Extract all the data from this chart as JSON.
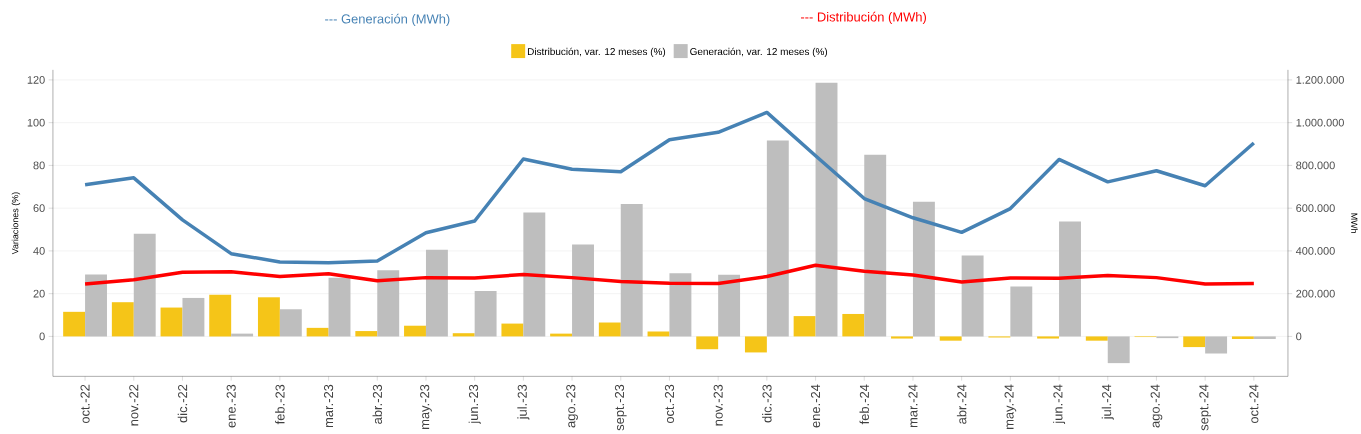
{
  "chart_data": {
    "type": "bar",
    "categories": [
      "oct.-22",
      "nov.-22",
      "dic.-22",
      "ene.-23",
      "feb.-23",
      "mar.-23",
      "abr.-23",
      "may.-23",
      "jun.-23",
      "jul.-23",
      "ago.-23",
      "sept.-23",
      "oct.-23",
      "nov.-23",
      "dic.-23",
      "ene.-24",
      "feb.-24",
      "mar.-24",
      "abr.-24",
      "may.-24",
      "jun.-24",
      "jul.-24",
      "ago.-24",
      "sept.-24",
      "oct.-24"
    ],
    "series": [
      {
        "name": "Distribución, var. 12 meses (%)",
        "color": "#f5c518",
        "values": [
          11.5,
          16,
          13.5,
          19.5,
          18.3,
          4,
          2.5,
          5,
          1.5,
          6,
          1.3,
          6.5,
          2.3,
          -6,
          -7.5,
          9.5,
          10.5,
          -1,
          -2,
          -0.5,
          -1,
          -2,
          -0.3,
          -5,
          -1.2
        ]
      },
      {
        "name": "Generación, var. 12 meses (%)",
        "color": "#bebebe",
        "values": [
          29,
          48,
          18,
          1.3,
          12.7,
          27.5,
          31,
          40.5,
          21.3,
          58,
          43,
          62,
          29.5,
          28.8,
          91.7,
          118.7,
          85,
          63,
          37.8,
          23.3,
          53.8,
          -12.5,
          -0.8,
          -8,
          -1.2
        ]
      },
      {
        "name": "--- Generación (MWh)",
        "type": "line",
        "axis": "y2",
        "color": "#4682b4",
        "values": [
          710000,
          742000,
          545000,
          387000,
          348000,
          345000,
          353000,
          485000,
          540000,
          830000,
          782000,
          770000,
          920000,
          955000,
          1048000,
          845000,
          645000,
          555000,
          487000,
          598000,
          828000,
          723000,
          775000,
          705000,
          905000
        ]
      },
      {
        "name": "--- Distribución (MWh)",
        "type": "line",
        "axis": "y2",
        "color": "#ff0000",
        "values": [
          245000,
          265000,
          300000,
          303000,
          280000,
          293000,
          260000,
          275000,
          273000,
          290000,
          275000,
          257000,
          249000,
          248000,
          280000,
          333000,
          305000,
          287000,
          255000,
          273000,
          272000,
          285000,
          275000,
          245000,
          247000
        ]
      }
    ],
    "ylabel": "Variaciones (%)",
    "y2label": "MWh",
    "ylim": [
      -18.7,
      124.7
    ],
    "yticks": [
      0,
      20,
      40,
      60,
      80,
      100,
      120
    ],
    "y2lim": [
      -187000,
      1247000
    ],
    "y2ticks": [
      {
        "value": 0,
        "label": "0"
      },
      {
        "value": 200000,
        "label": "200.000"
      },
      {
        "value": 400000,
        "label": "400.000"
      },
      {
        "value": 600000,
        "label": "600.000"
      },
      {
        "value": 800000,
        "label": "800.000"
      },
      {
        "value": 1000000,
        "label": "1.000.000"
      },
      {
        "value": 1200000,
        "label": "1.200.000"
      }
    ],
    "grid": "y",
    "legend": "top",
    "marker": "none",
    "line_style": "solid"
  }
}
